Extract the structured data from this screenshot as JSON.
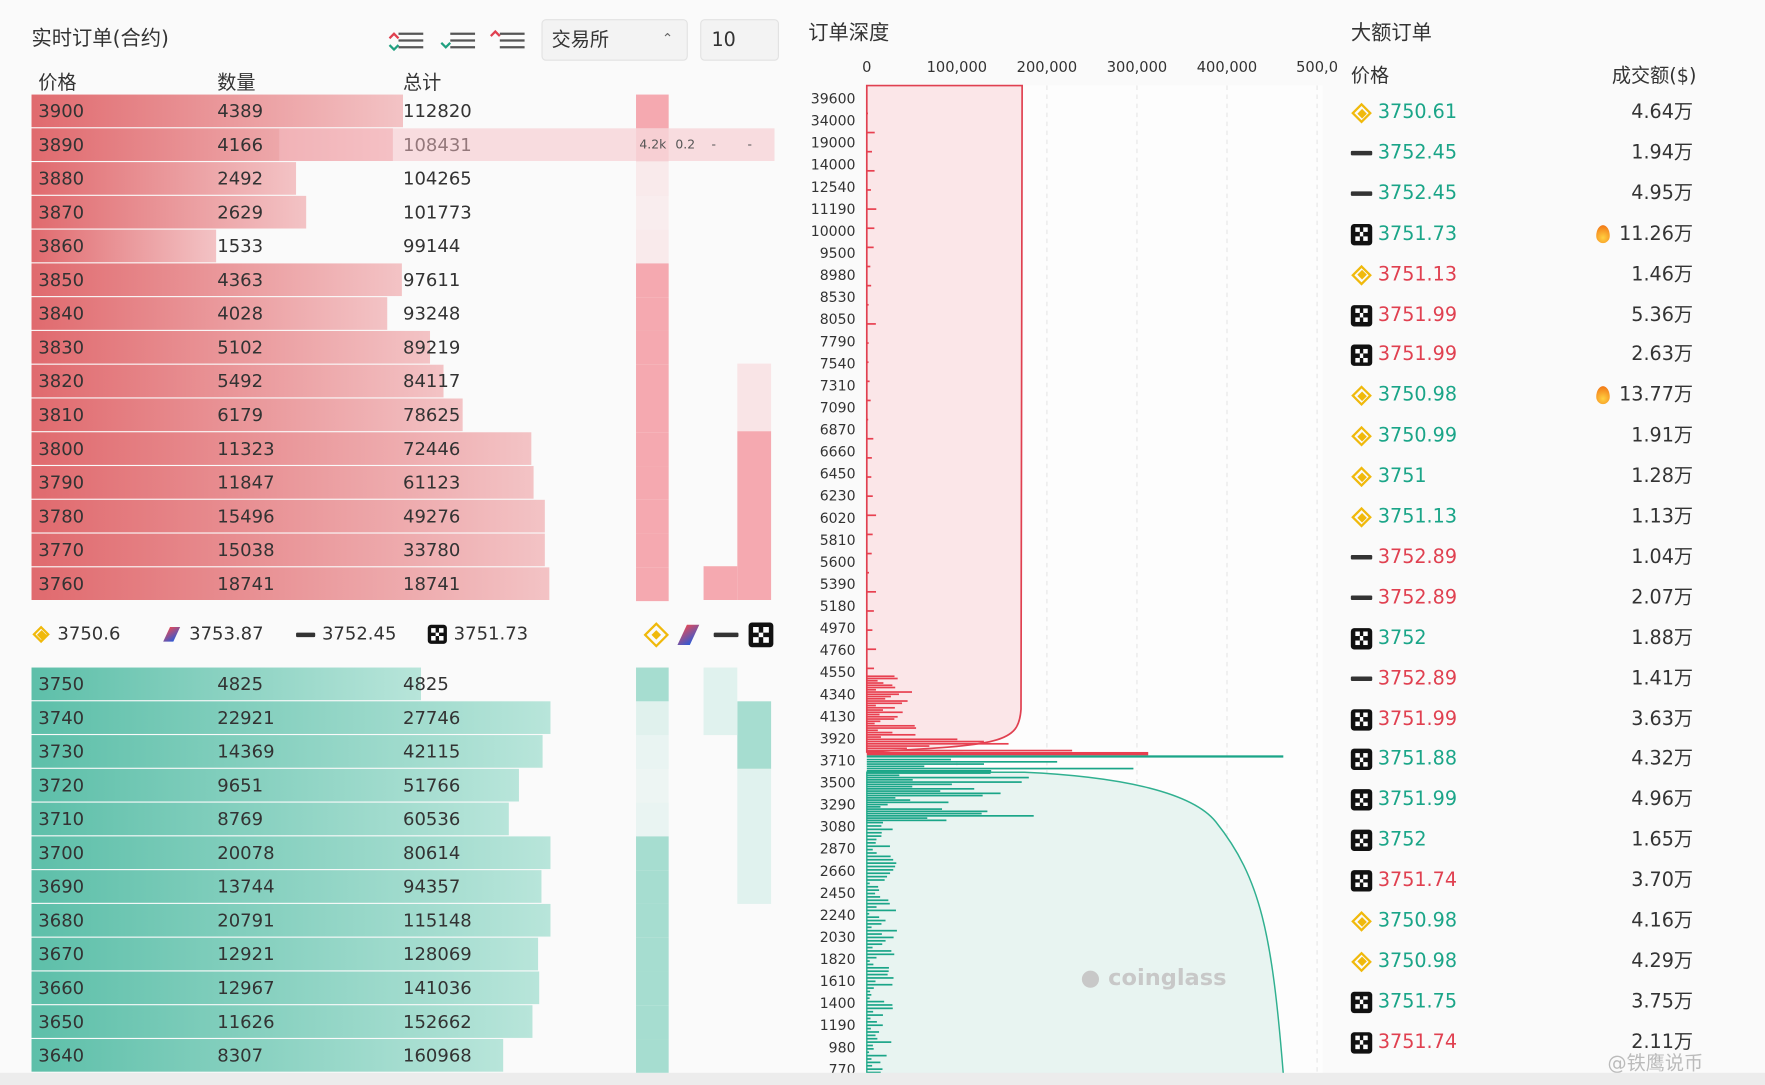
{
  "orderbook": {
    "title": "实时订单(合约)",
    "exchange_select": "交易所",
    "depth_select": "10",
    "columns": [
      "价格",
      "数量",
      "总计"
    ],
    "asks": [
      {
        "price": "3900",
        "qty": "4389",
        "total": "112820"
      },
      {
        "price": "3890",
        "qty": "4166",
        "total": "108431"
      },
      {
        "price": "3880",
        "qty": "2492",
        "total": "104265"
      },
      {
        "price": "3870",
        "qty": "2629",
        "total": "101773"
      },
      {
        "price": "3860",
        "qty": "1533",
        "total": "99144"
      },
      {
        "price": "3850",
        "qty": "4363",
        "total": "97611"
      },
      {
        "price": "3840",
        "qty": "4028",
        "total": "93248"
      },
      {
        "price": "3830",
        "qty": "5102",
        "total": "89219"
      },
      {
        "price": "3820",
        "qty": "5492",
        "total": "84117"
      },
      {
        "price": "3810",
        "qty": "6179",
        "total": "78625"
      },
      {
        "price": "3800",
        "qty": "11323",
        "total": "72446"
      },
      {
        "price": "3790",
        "qty": "11847",
        "total": "61123"
      },
      {
        "price": "3780",
        "qty": "15496",
        "total": "49276"
      },
      {
        "price": "3770",
        "qty": "15038",
        "total": "33780"
      },
      {
        "price": "3760",
        "qty": "18741",
        "total": "18741"
      }
    ],
    "hover_cells": [
      "4.2k",
      "0.2",
      "-",
      "-"
    ],
    "mid_prices": [
      {
        "exchange": "binance",
        "price": "3750.6"
      },
      {
        "exchange": "huobi",
        "price": "3753.87"
      },
      {
        "exchange": "bybit",
        "price": "3752.45"
      },
      {
        "exchange": "okx",
        "price": "3751.73"
      }
    ],
    "bids": [
      {
        "price": "3750",
        "qty": "4825",
        "total": "4825"
      },
      {
        "price": "3740",
        "qty": "22921",
        "total": "27746"
      },
      {
        "price": "3730",
        "qty": "14369",
        "total": "42115"
      },
      {
        "price": "3720",
        "qty": "9651",
        "total": "51766"
      },
      {
        "price": "3710",
        "qty": "8769",
        "total": "60536"
      },
      {
        "price": "3700",
        "qty": "20078",
        "total": "80614"
      },
      {
        "price": "3690",
        "qty": "13744",
        "total": "94357"
      },
      {
        "price": "3680",
        "qty": "20791",
        "total": "115148"
      },
      {
        "price": "3670",
        "qty": "12921",
        "total": "128069"
      },
      {
        "price": "3660",
        "qty": "12967",
        "total": "141036"
      },
      {
        "price": "3650",
        "qty": "11626",
        "total": "152662"
      },
      {
        "price": "3640",
        "qty": "8307",
        "total": "160968"
      }
    ]
  },
  "depth": {
    "title": "订单深度",
    "xticks": [
      "0",
      "100,000",
      "200,000",
      "300,000",
      "400,000",
      "500,0"
    ],
    "ylabels": [
      "39600",
      "34000",
      "19000",
      "14000",
      "12540",
      "11190",
      "10000",
      "9500",
      "8980",
      "8530",
      "8050",
      "7790",
      "7540",
      "7310",
      "7090",
      "6870",
      "6660",
      "6450",
      "6230",
      "6020",
      "5810",
      "5600",
      "5390",
      "5180",
      "4970",
      "4760",
      "4550",
      "4340",
      "4130",
      "3920",
      "3710",
      "3500",
      "3290",
      "3080",
      "2870",
      "2660",
      "2450",
      "2240",
      "2030",
      "1820",
      "1610",
      "1400",
      "1190",
      "980",
      "770"
    ],
    "watermark": "coinglass"
  },
  "large_orders": {
    "title": "大额订单",
    "columns": [
      "价格",
      "成交额($)"
    ],
    "rows": [
      {
        "exchange": "binance",
        "price": "3750.61",
        "amount": "4.64万",
        "side": "buy",
        "hot": false
      },
      {
        "exchange": "bybit",
        "price": "3752.45",
        "amount": "1.94万",
        "side": "buy",
        "hot": false
      },
      {
        "exchange": "bybit",
        "price": "3752.45",
        "amount": "4.95万",
        "side": "buy",
        "hot": false
      },
      {
        "exchange": "okx",
        "price": "3751.73",
        "amount": "11.26万",
        "side": "buy",
        "hot": true
      },
      {
        "exchange": "binance",
        "price": "3751.13",
        "amount": "1.46万",
        "side": "sell",
        "hot": false
      },
      {
        "exchange": "okx",
        "price": "3751.99",
        "amount": "5.36万",
        "side": "sell",
        "hot": false
      },
      {
        "exchange": "okx",
        "price": "3751.99",
        "amount": "2.63万",
        "side": "sell",
        "hot": false
      },
      {
        "exchange": "binance",
        "price": "3750.98",
        "amount": "13.77万",
        "side": "buy",
        "hot": true
      },
      {
        "exchange": "binance",
        "price": "3750.99",
        "amount": "1.91万",
        "side": "buy",
        "hot": false
      },
      {
        "exchange": "binance",
        "price": "3751",
        "amount": "1.28万",
        "side": "buy",
        "hot": false
      },
      {
        "exchange": "binance",
        "price": "3751.13",
        "amount": "1.13万",
        "side": "buy",
        "hot": false
      },
      {
        "exchange": "bybit",
        "price": "3752.89",
        "amount": "1.04万",
        "side": "sell",
        "hot": false
      },
      {
        "exchange": "bybit",
        "price": "3752.89",
        "amount": "2.07万",
        "side": "sell",
        "hot": false
      },
      {
        "exchange": "okx",
        "price": "3752",
        "amount": "1.88万",
        "side": "buy",
        "hot": false
      },
      {
        "exchange": "bybit",
        "price": "3752.89",
        "amount": "1.41万",
        "side": "sell",
        "hot": false
      },
      {
        "exchange": "okx",
        "price": "3751.99",
        "amount": "3.63万",
        "side": "sell",
        "hot": false
      },
      {
        "exchange": "okx",
        "price": "3751.88",
        "amount": "4.32万",
        "side": "buy",
        "hot": false
      },
      {
        "exchange": "okx",
        "price": "3751.99",
        "amount": "4.96万",
        "side": "buy",
        "hot": false
      },
      {
        "exchange": "okx",
        "price": "3752",
        "amount": "1.65万",
        "side": "buy",
        "hot": false
      },
      {
        "exchange": "okx",
        "price": "3751.74",
        "amount": "3.70万",
        "side": "sell",
        "hot": false
      },
      {
        "exchange": "binance",
        "price": "3750.98",
        "amount": "4.16万",
        "side": "buy",
        "hot": false
      },
      {
        "exchange": "binance",
        "price": "3750.98",
        "amount": "4.29万",
        "side": "buy",
        "hot": false
      },
      {
        "exchange": "okx",
        "price": "3751.75",
        "amount": "3.75万",
        "side": "buy",
        "hot": false
      },
      {
        "exchange": "okx",
        "price": "3751.74",
        "amount": "2.11万",
        "side": "sell",
        "hot": false
      }
    ],
    "watermark": "@铁鹰说币"
  }
}
